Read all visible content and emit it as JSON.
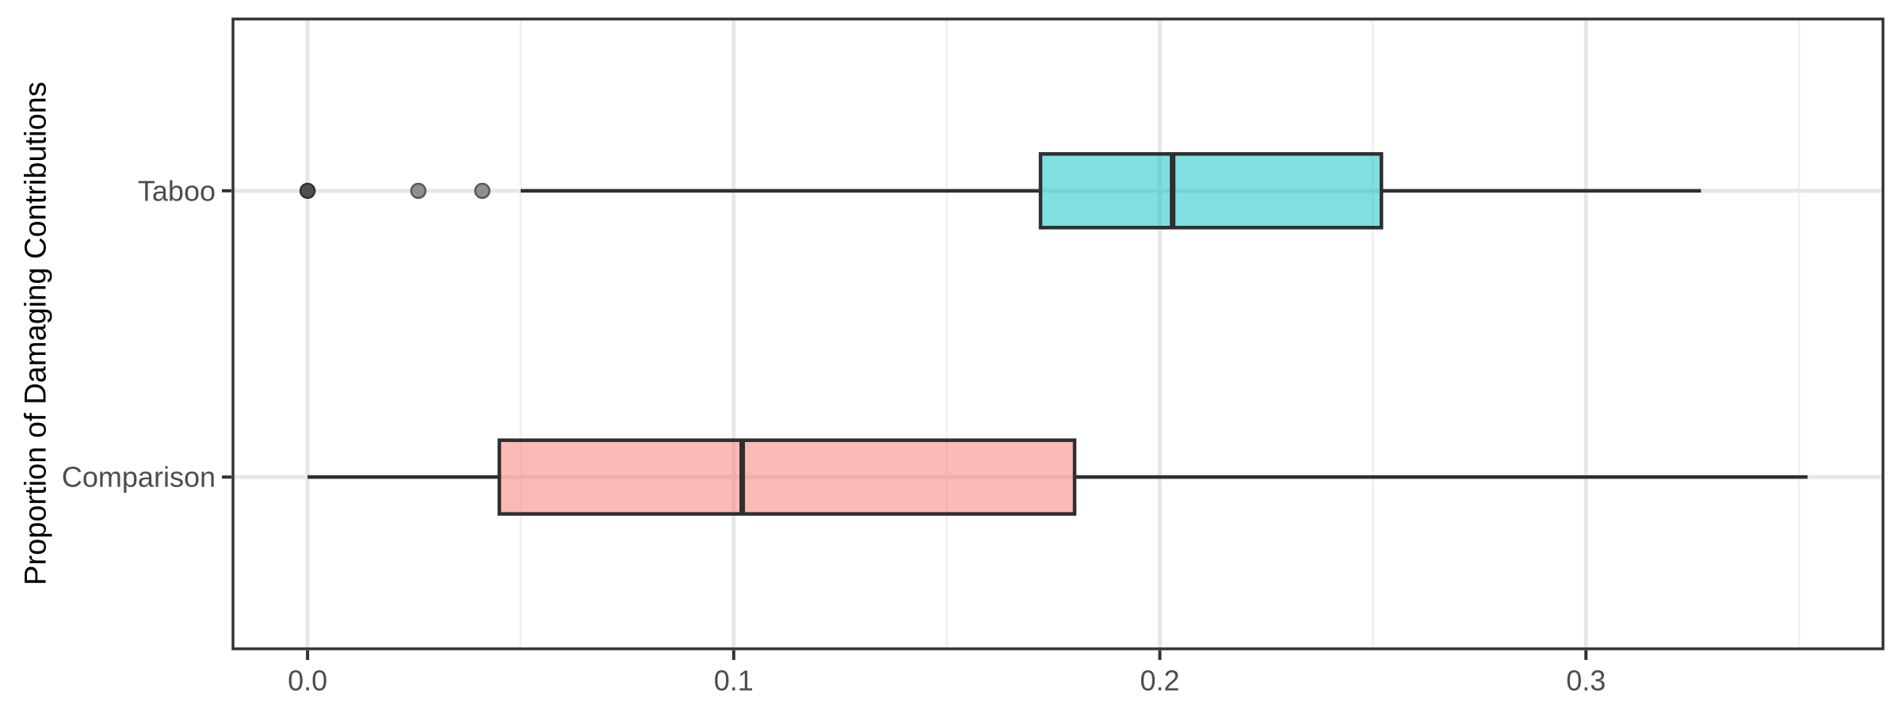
{
  "figure": {
    "ylabel": "Proportion of Damaging Contributions"
  },
  "chart_data": {
    "type": "boxplot",
    "orientation": "horizontal",
    "title": "",
    "xlabel": "",
    "ylabel": "Proportion of Damaging Contributions",
    "grid": "on",
    "legend": "none",
    "x_axis": {
      "range": [
        -0.0175,
        0.3697
      ],
      "major_ticks": [
        0,
        0.1,
        0.2,
        0.3
      ],
      "tick_labels": [
        "0.0",
        "0.1",
        "0.2",
        "0.3"
      ],
      "minor_ticks": [
        0.05,
        0.15,
        0.25,
        0.35
      ]
    },
    "y_axis": {
      "range": [
        0.4,
        2.6
      ],
      "categories": [
        "Comparison",
        "Taboo"
      ]
    },
    "series": [
      {
        "name": "Taboo",
        "position": 2,
        "whisker_low": 0.05,
        "q1": 0.172,
        "median": 0.203,
        "q3": 0.252,
        "whisker_high": 0.327,
        "outliers": [
          {
            "value": 0.0,
            "shade": "dark"
          },
          {
            "value": 0.026,
            "shade": "medium"
          },
          {
            "value": 0.041,
            "shade": "medium"
          }
        ],
        "fill": "#00BFC4"
      },
      {
        "name": "Comparison",
        "position": 1,
        "whisker_low": 0.0,
        "q1": 0.045,
        "median": 0.102,
        "q3": 0.18,
        "whisker_high": 0.352,
        "outliers": [],
        "fill": "#F8766D"
      }
    ],
    "style": {
      "background": "#ffffff",
      "panel_border": "#333333",
      "grid_major": "#e7e7e7",
      "grid_minor": "#f1f1f1",
      "box_stroke": "#2f2f2f",
      "fill_opacity": 0.5,
      "tick_color": "#333333",
      "tick_label_color": "#4d4d4d",
      "axis_title_color": "#000000",
      "outlier_dark_fill": "#4f4f4f",
      "outlier_dark_stroke": "#333333",
      "outlier_medium_fill": "#8f8f8f",
      "outlier_medium_stroke": "#595959"
    }
  }
}
